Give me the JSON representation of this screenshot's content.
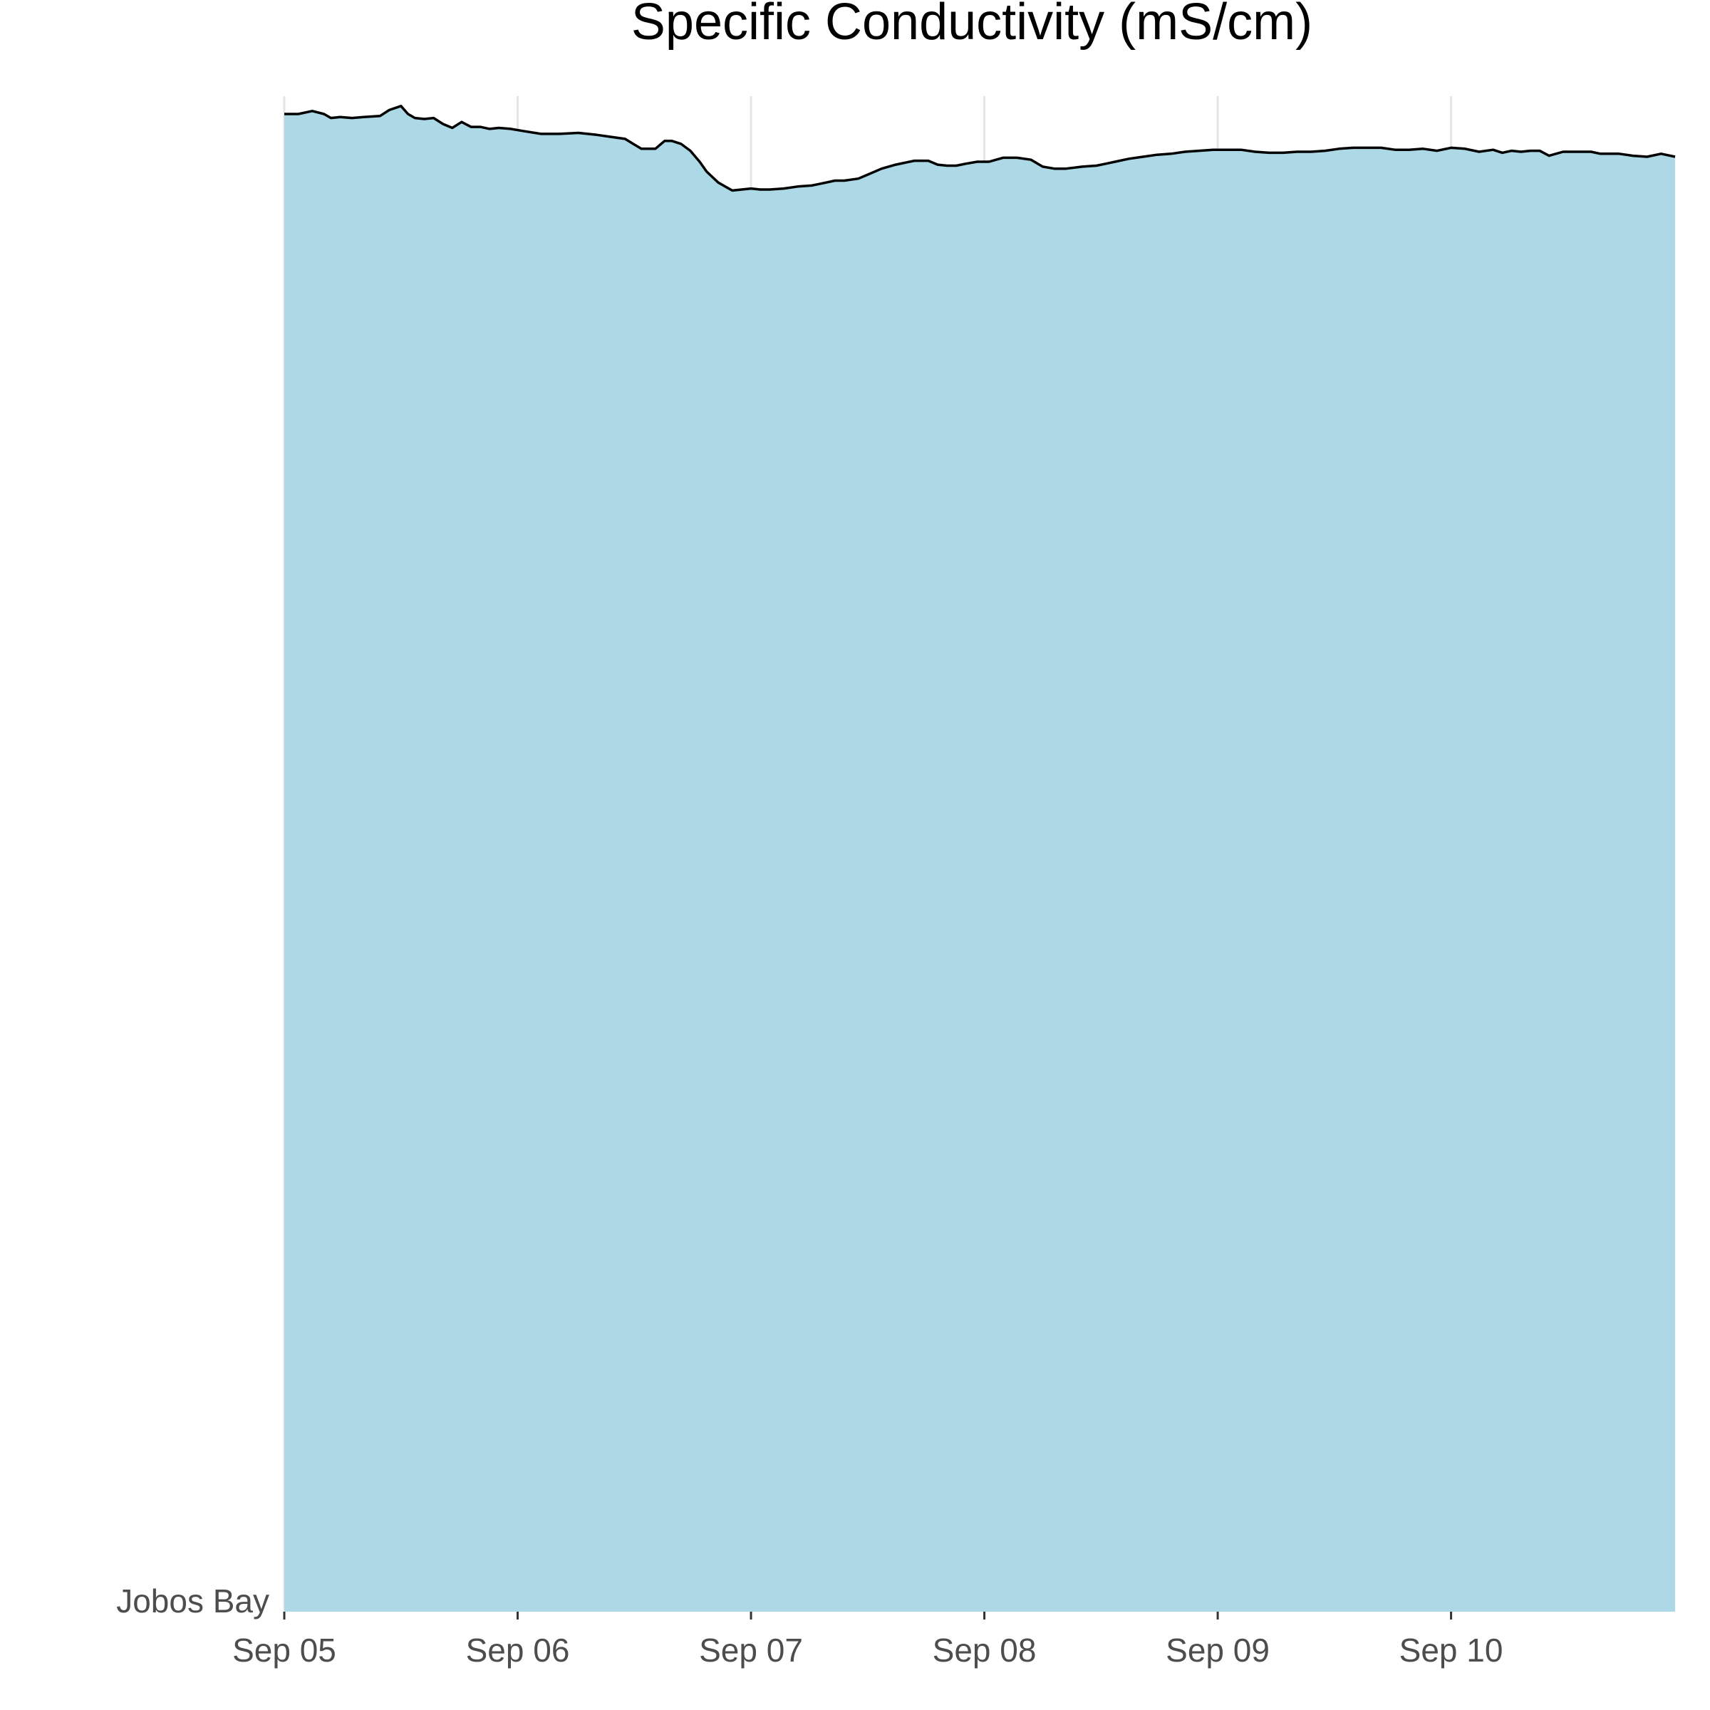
{
  "chart_data": {
    "type": "area",
    "title": "Specific Conductivity (mS/cm)",
    "xlabel": "",
    "ylabel": "",
    "series_label": "Jobos Bay",
    "x_ticks": [
      "Sep 05",
      "Sep 06",
      "Sep 07",
      "Sep 08",
      "Sep 09",
      "Sep 10"
    ],
    "x_range_days": [
      0,
      5.96
    ],
    "y_range": [
      0,
      1
    ],
    "grid": "vertical major lines only",
    "legend": "none",
    "fill_color": "#add8e6",
    "line_color": "#000000",
    "series": [
      {
        "values_note": "day offsets from Sep 05 paired with relative conductivity level",
        "x": [
          0.0,
          0.06,
          0.12,
          0.17,
          0.2,
          0.24,
          0.29,
          0.34,
          0.41,
          0.45,
          0.5,
          0.53,
          0.56,
          0.6,
          0.64,
          0.68,
          0.72,
          0.76,
          0.8,
          0.84,
          0.88,
          0.92,
          0.97,
          1.02,
          1.1,
          1.18,
          1.26,
          1.34,
          1.4,
          1.46,
          1.53,
          1.59,
          1.63,
          1.66,
          1.7,
          1.74,
          1.78,
          1.81,
          1.86,
          1.92,
          1.96,
          2.0,
          2.04,
          2.08,
          2.14,
          2.2,
          2.26,
          2.32,
          2.36,
          2.4,
          2.46,
          2.5,
          2.56,
          2.62,
          2.7,
          2.76,
          2.8,
          2.84,
          2.88,
          2.92,
          2.97,
          3.02,
          3.08,
          3.14,
          3.2,
          3.25,
          3.3,
          3.35,
          3.42,
          3.48,
          3.52,
          3.56,
          3.62,
          3.68,
          3.74,
          3.8,
          3.86,
          3.92,
          3.98,
          4.04,
          4.1,
          4.16,
          4.22,
          4.28,
          4.34,
          4.4,
          4.46,
          4.52,
          4.58,
          4.64,
          4.7,
          4.76,
          4.82,
          4.88,
          4.94,
          5.0,
          5.06,
          5.12,
          5.18,
          5.22,
          5.26,
          5.3,
          5.34,
          5.38,
          5.42,
          5.48,
          5.54,
          5.6,
          5.64,
          5.68,
          5.72,
          5.78,
          5.84,
          5.9,
          5.96
        ],
        "y": [
          1.0,
          1.0,
          1.003,
          1.0,
          0.996,
          0.997,
          0.996,
          0.997,
          0.998,
          1.004,
          1.008,
          1.0,
          0.996,
          0.995,
          0.996,
          0.99,
          0.986,
          0.992,
          0.987,
          0.987,
          0.985,
          0.986,
          0.985,
          0.983,
          0.98,
          0.98,
          0.981,
          0.979,
          0.977,
          0.975,
          0.965,
          0.965,
          0.973,
          0.973,
          0.97,
          0.963,
          0.952,
          0.942,
          0.931,
          0.923,
          0.924,
          0.925,
          0.924,
          0.924,
          0.925,
          0.927,
          0.928,
          0.931,
          0.933,
          0.933,
          0.935,
          0.939,
          0.945,
          0.949,
          0.953,
          0.953,
          0.949,
          0.948,
          0.948,
          0.95,
          0.952,
          0.952,
          0.956,
          0.956,
          0.954,
          0.947,
          0.945,
          0.945,
          0.947,
          0.948,
          0.95,
          0.952,
          0.955,
          0.957,
          0.959,
          0.96,
          0.962,
          0.963,
          0.964,
          0.964,
          0.964,
          0.962,
          0.961,
          0.961,
          0.962,
          0.962,
          0.963,
          0.965,
          0.966,
          0.966,
          0.966,
          0.964,
          0.964,
          0.965,
          0.963,
          0.966,
          0.965,
          0.962,
          0.964,
          0.961,
          0.963,
          0.962,
          0.963,
          0.963,
          0.958,
          0.962,
          0.962,
          0.962,
          0.96,
          0.96,
          0.96,
          0.958,
          0.957,
          0.96,
          0.957
        ]
      }
    ]
  },
  "colors": {
    "background": "#ffffff",
    "fill": "#add8e6",
    "outline": "#000000",
    "grid": "#e5e5e5",
    "tick_text": "#4d4d4d"
  }
}
